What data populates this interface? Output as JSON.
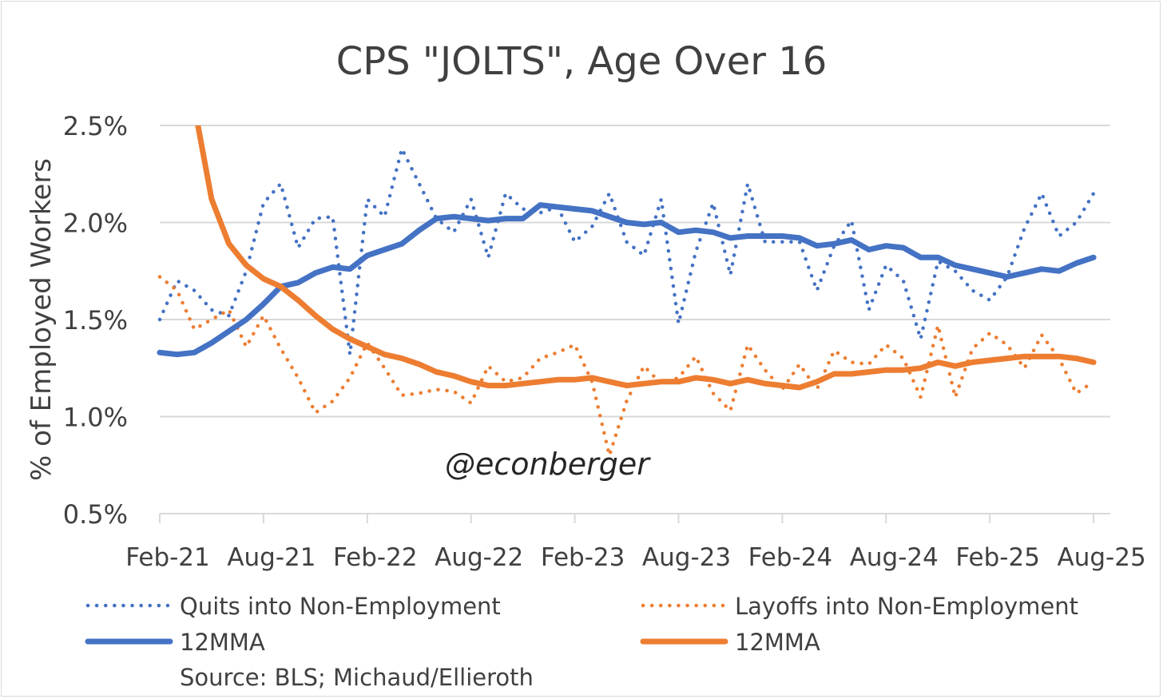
{
  "chart_data": {
    "type": "line",
    "title": "CPS \"JOLTS\", Age Over 16",
    "ylabel": "% of Employed Workers",
    "xlabel": "",
    "ylim": [
      0.5,
      2.5
    ],
    "yticks": [
      "0.5%",
      "1.0%",
      "1.5%",
      "2.0%",
      "2.5%"
    ],
    "ytick_values": [
      0.5,
      1.0,
      1.5,
      2.0,
      2.5
    ],
    "xticks": [
      "Feb-21",
      "Aug-21",
      "Feb-22",
      "Aug-22",
      "Feb-23",
      "Aug-23",
      "Feb-24",
      "Aug-24",
      "Feb-25",
      "Aug-25"
    ],
    "x_range": [
      "Feb-21",
      "Aug-25"
    ],
    "grid": true,
    "legend_placement": "bottom",
    "annotation": "@econberger",
    "source": "Source: BLS; Michaud/Ellieroth",
    "series": [
      {
        "name": "Quits into Non-Employment",
        "color": "#4472c4",
        "style": "dotted",
        "values": [
          1.5,
          1.7,
          1.65,
          1.55,
          1.52,
          1.75,
          2.1,
          2.2,
          1.87,
          2.02,
          2.03,
          1.32,
          2.12,
          2.03,
          2.38,
          2.2,
          2.02,
          1.95,
          2.12,
          1.82,
          2.15,
          2.07,
          2.05,
          2.08,
          1.9,
          1.98,
          2.15,
          1.9,
          1.83,
          2.12,
          1.48,
          1.85,
          2.1,
          1.73,
          2.2,
          1.9,
          1.9,
          1.9,
          1.65,
          1.88,
          2.01,
          1.55,
          1.78,
          1.7,
          1.4,
          1.8,
          1.75,
          1.65,
          1.6,
          1.72,
          1.97,
          2.15,
          1.93,
          2.0,
          2.15
        ]
      },
      {
        "name": "Layoffs into Non-Employment",
        "color": "#ed7d31",
        "style": "dotted",
        "values": [
          1.72,
          1.65,
          1.45,
          1.5,
          1.55,
          1.36,
          1.52,
          1.35,
          1.2,
          1.02,
          1.08,
          1.2,
          1.38,
          1.25,
          1.11,
          1.12,
          1.14,
          1.13,
          1.07,
          1.26,
          1.18,
          1.2,
          1.3,
          1.33,
          1.37,
          1.18,
          0.8,
          1.08,
          1.26,
          1.17,
          1.2,
          1.31,
          1.12,
          1.03,
          1.37,
          1.24,
          1.14,
          1.27,
          1.14,
          1.34,
          1.28,
          1.27,
          1.37,
          1.3,
          1.1,
          1.47,
          1.1,
          1.35,
          1.43,
          1.37,
          1.25,
          1.42,
          1.3,
          1.12,
          1.18
        ]
      },
      {
        "name": "12MMA",
        "color": "#4472c4",
        "style": "solid",
        "values": [
          1.33,
          1.32,
          1.33,
          1.38,
          1.44,
          1.5,
          1.58,
          1.67,
          1.69,
          1.74,
          1.77,
          1.76,
          1.83,
          1.86,
          1.89,
          1.96,
          2.02,
          2.03,
          2.02,
          2.01,
          2.02,
          2.02,
          2.09,
          2.08,
          2.07,
          2.06,
          2.03,
          2.0,
          1.99,
          2.0,
          1.95,
          1.96,
          1.95,
          1.92,
          1.93,
          1.93,
          1.93,
          1.92,
          1.88,
          1.89,
          1.91,
          1.86,
          1.88,
          1.87,
          1.82,
          1.82,
          1.78,
          1.76,
          1.74,
          1.72,
          1.74,
          1.76,
          1.75,
          1.79,
          1.82
        ]
      },
      {
        "name": "12MMA",
        "color": "#ed7d31",
        "style": "solid",
        "values": [
          null,
          null,
          2.6,
          2.12,
          1.89,
          1.78,
          1.71,
          1.67,
          1.6,
          1.52,
          1.45,
          1.4,
          1.36,
          1.32,
          1.3,
          1.27,
          1.23,
          1.21,
          1.18,
          1.16,
          1.16,
          1.17,
          1.18,
          1.19,
          1.19,
          1.2,
          1.18,
          1.16,
          1.17,
          1.18,
          1.18,
          1.2,
          1.19,
          1.17,
          1.19,
          1.17,
          1.16,
          1.15,
          1.18,
          1.22,
          1.22,
          1.23,
          1.24,
          1.24,
          1.25,
          1.28,
          1.26,
          1.28,
          1.29,
          1.3,
          1.31,
          1.31,
          1.31,
          1.3,
          1.28
        ]
      }
    ]
  }
}
